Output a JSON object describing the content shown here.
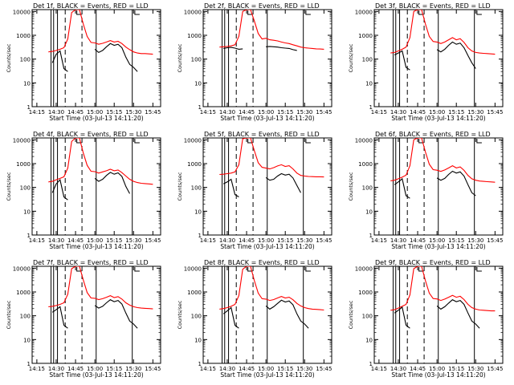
{
  "figure": {
    "x_tick_labels": [
      "14:15",
      "14:30",
      "14:45",
      "15:00",
      "15:15",
      "15:30",
      "15:45"
    ],
    "y_tick_labels": [
      "1",
      "10",
      "100",
      "1000",
      "10000"
    ],
    "ylabel": "Counts/sec",
    "xlabel": "Start Time (03-Jul-13 14:11:20)",
    "colors": {
      "events": "#000000",
      "lld": "#ff0000",
      "axes": "#000000"
    }
  },
  "chart_data": [
    {
      "type": "line",
      "title": "Det 1f, BLACK = Events, RED = LLD",
      "y_scale": "log",
      "xlim": [
        "14:11:20",
        "15:51:00"
      ],
      "ylim": [
        1,
        12000
      ],
      "x": [
        "14:24",
        "14:27",
        "14:30",
        "14:33",
        "14:36",
        "14:39",
        "14:42",
        "14:45",
        "14:48",
        "14:51",
        "14:54",
        "14:57",
        "15:00",
        "15:03",
        "15:06",
        "15:09",
        "15:12",
        "15:15",
        "15:18",
        "15:21",
        "15:24",
        "15:27",
        "15:30",
        "15:33",
        "15:36",
        "15:39",
        "15:42",
        "15:45"
      ],
      "series": [
        {
          "name": "BLACK = Events",
          "values": [
            null,
            null,
            null,
            null,
            null,
            null,
            null,
            null,
            null,
            null,
            null,
            null,
            null,
            null,
            null,
            null,
            null,
            null,
            null,
            null,
            null,
            null,
            null,
            null,
            null,
            null,
            null,
            null
          ]
        },
        {
          "name": "RED = LLD",
          "values": [
            null,
            null,
            null,
            null,
            null,
            null,
            null,
            null,
            null,
            null,
            null,
            null,
            null,
            null,
            null,
            null,
            null,
            null,
            null,
            null,
            null,
            null,
            null,
            null,
            null,
            null,
            null,
            null
          ]
        }
      ]
    },
    {
      "type": "line",
      "title": "Det 2f, BLACK = Events, RED = LLD",
      "y_scale": "log",
      "xlim": [
        "14:11:20",
        "15:51:00"
      ],
      "ylim": [
        1,
        12000
      ],
      "x": [
        "14:24",
        "14:27",
        "14:30",
        "14:33",
        "14:36",
        "14:39",
        "14:42",
        "14:45",
        "14:48",
        "14:51",
        "14:54",
        "14:57",
        "15:00",
        "15:03",
        "15:06",
        "15:09",
        "15:12",
        "15:15",
        "15:18",
        "15:21",
        "15:24",
        "15:27",
        "15:30",
        "15:33",
        "15:36",
        "15:39",
        "15:42",
        "15:45"
      ],
      "series": [
        {
          "name": "BLACK = Events",
          "values": [
            null,
            null,
            null,
            null,
            null,
            null,
            null,
            null,
            null,
            null,
            null,
            null,
            null,
            null,
            null,
            null,
            null,
            null,
            null,
            null,
            null,
            null,
            null,
            null,
            null,
            null,
            null,
            null
          ]
        },
        {
          "name": "RED = LLD",
          "values": [
            null,
            null,
            null,
            null,
            null,
            null,
            null,
            null,
            null,
            null,
            null,
            null,
            null,
            null,
            null,
            null,
            null,
            null,
            null,
            null,
            null,
            null,
            null,
            null,
            null,
            null,
            null,
            null
          ]
        }
      ]
    },
    {
      "type": "line",
      "title": "Det 3f, BLACK = Events, RED = LLD",
      "y_scale": "log",
      "xlim": [
        "14:11:20",
        "15:51:00"
      ],
      "ylim": [
        1,
        12000
      ],
      "x": [
        "14:24",
        "14:27",
        "14:30",
        "14:33",
        "14:36",
        "14:39",
        "14:42",
        "14:45",
        "14:48",
        "14:51",
        "14:54",
        "14:57",
        "15:00",
        "15:03",
        "15:06",
        "15:09",
        "15:12",
        "15:15",
        "15:18",
        "15:21",
        "15:24",
        "15:27",
        "15:30",
        "15:33",
        "15:36",
        "15:39",
        "15:42",
        "15:45"
      ],
      "series": [
        {
          "name": "BLACK = Events",
          "values": [
            null,
            null,
            null,
            null,
            null,
            null,
            null,
            null,
            null,
            null,
            null,
            null,
            null,
            null,
            null,
            null,
            null,
            null,
            null,
            null,
            null,
            null,
            null,
            null,
            null,
            null,
            null,
            null
          ]
        },
        {
          "name": "RED = LLD",
          "values": [
            null,
            null,
            null,
            null,
            null,
            null,
            null,
            null,
            null,
            null,
            null,
            null,
            null,
            null,
            null,
            null,
            null,
            null,
            null,
            null,
            null,
            null,
            null,
            null,
            null,
            null,
            null,
            null
          ]
        }
      ]
    },
    {
      "type": "line",
      "title": "Det 4f, BLACK = Events, RED = LLD",
      "y_scale": "log",
      "xlim": [
        "14:11:20",
        "15:51:00"
      ],
      "ylim": [
        1,
        12000
      ],
      "x": [
        "14:24",
        "14:27",
        "14:30",
        "14:33",
        "14:36",
        "14:39",
        "14:42",
        "14:45",
        "14:48",
        "14:51",
        "14:54",
        "14:57",
        "15:00",
        "15:03",
        "15:06",
        "15:09",
        "15:12",
        "15:15",
        "15:18",
        "15:21",
        "15:24",
        "15:27",
        "15:30",
        "15:33",
        "15:36",
        "15:39",
        "15:42",
        "15:45"
      ],
      "series": [
        {
          "name": "BLACK = Events",
          "values": [
            null,
            null,
            null,
            null,
            null,
            null,
            null,
            null,
            null,
            null,
            null,
            null,
            null,
            null,
            null,
            null,
            null,
            null,
            null,
            null,
            null,
            null,
            null,
            null,
            null,
            null,
            null,
            null
          ]
        },
        {
          "name": "RED = LLD",
          "values": [
            null,
            null,
            null,
            null,
            null,
            null,
            null,
            null,
            null,
            null,
            null,
            null,
            null,
            null,
            null,
            null,
            null,
            null,
            null,
            null,
            null,
            null,
            null,
            null,
            null,
            null,
            null,
            null
          ]
        }
      ]
    },
    {
      "type": "line",
      "title": "Det 5f, BLACK = Events, RED = LLD",
      "y_scale": "log",
      "xlim": [
        "14:11:20",
        "15:51:00"
      ],
      "ylim": [
        1,
        12000
      ],
      "x": [
        "14:24",
        "14:27",
        "14:30",
        "14:33",
        "14:36",
        "14:39",
        "14:42",
        "14:45",
        "14:48",
        "14:51",
        "14:54",
        "14:57",
        "15:00",
        "15:03",
        "15:06",
        "15:09",
        "15:12",
        "15:15",
        "15:18",
        "15:21",
        "15:24",
        "15:27",
        "15:30",
        "15:33",
        "15:36",
        "15:39",
        "15:42",
        "15:45"
      ],
      "series": [
        {
          "name": "BLACK = Events",
          "values": [
            null,
            null,
            null,
            null,
            null,
            null,
            null,
            null,
            null,
            null,
            null,
            null,
            null,
            null,
            null,
            null,
            null,
            null,
            null,
            null,
            null,
            null,
            null,
            null,
            null,
            null,
            null,
            null
          ]
        },
        {
          "name": "RED = LLD",
          "values": [
            null,
            null,
            null,
            null,
            null,
            null,
            null,
            null,
            null,
            null,
            null,
            null,
            null,
            null,
            null,
            null,
            null,
            null,
            null,
            null,
            null,
            null,
            null,
            null,
            null,
            null,
            null,
            null
          ]
        }
      ]
    },
    {
      "type": "line",
      "title": "Det 6f, BLACK = Events, RED = LLD",
      "y_scale": "log",
      "xlim": [
        "14:11:20",
        "15:51:00"
      ],
      "ylim": [
        1,
        12000
      ],
      "x": [
        "14:24",
        "14:27",
        "14:30",
        "14:33",
        "14:36",
        "14:39",
        "14:42",
        "14:45",
        "14:48",
        "14:51",
        "14:54",
        "14:57",
        "15:00",
        "15:03",
        "15:06",
        "15:09",
        "15:12",
        "15:15",
        "15:18",
        "15:21",
        "15:24",
        "15:27",
        "15:30",
        "15:33",
        "15:36",
        "15:39",
        "15:42",
        "15:45"
      ],
      "series": [
        {
          "name": "BLACK = Events",
          "values": [
            null,
            null,
            null,
            null,
            null,
            null,
            null,
            null,
            null,
            null,
            null,
            null,
            null,
            null,
            null,
            null,
            null,
            null,
            null,
            null,
            null,
            null,
            null,
            null,
            null,
            null,
            null,
            null
          ]
        },
        {
          "name": "RED = LLD",
          "values": [
            null,
            null,
            null,
            null,
            null,
            null,
            null,
            null,
            null,
            null,
            null,
            null,
            null,
            null,
            null,
            null,
            null,
            null,
            null,
            null,
            null,
            null,
            null,
            null,
            null,
            null,
            null,
            null
          ]
        }
      ]
    },
    {
      "type": "line",
      "title": "Det 7f, BLACK = Events, RED = LLD",
      "y_scale": "log",
      "xlim": [
        "14:11:20",
        "15:51:00"
      ],
      "ylim": [
        1,
        12000
      ],
      "x": [
        "14:24",
        "14:27",
        "14:30",
        "14:33",
        "14:36",
        "14:39",
        "14:42",
        "14:45",
        "14:48",
        "14:51",
        "14:54",
        "14:57",
        "15:00",
        "15:03",
        "15:06",
        "15:09",
        "15:12",
        "15:15",
        "15:18",
        "15:21",
        "15:24",
        "15:27",
        "15:30",
        "15:33",
        "15:36",
        "15:39",
        "15:42",
        "15:45"
      ],
      "series": [
        {
          "name": "BLACK = Events",
          "values": [
            null,
            null,
            null,
            null,
            null,
            null,
            null,
            null,
            null,
            null,
            null,
            null,
            null,
            null,
            null,
            null,
            null,
            null,
            null,
            null,
            null,
            null,
            null,
            null,
            null,
            null,
            null,
            null
          ]
        },
        {
          "name": "RED = LLD",
          "values": [
            null,
            null,
            null,
            null,
            null,
            null,
            null,
            null,
            null,
            null,
            null,
            null,
            null,
            null,
            null,
            null,
            null,
            null,
            null,
            null,
            null,
            null,
            null,
            null,
            null,
            null,
            null,
            null
          ]
        }
      ]
    },
    {
      "type": "line",
      "title": "Det 8f, BLACK = Events, RED = LLD",
      "y_scale": "log",
      "xlim": [
        "14:11:20",
        "15:51:00"
      ],
      "ylim": [
        1,
        12000
      ],
      "x": [
        "14:24",
        "14:27",
        "14:30",
        "14:33",
        "14:36",
        "14:39",
        "14:42",
        "14:45",
        "14:48",
        "14:51",
        "14:54",
        "14:57",
        "15:00",
        "15:03",
        "15:06",
        "15:09",
        "15:12",
        "15:15",
        "15:18",
        "15:21",
        "15:24",
        "15:27",
        "15:30",
        "15:33",
        "15:36",
        "15:39",
        "15:42",
        "15:45"
      ],
      "series": [
        {
          "name": "BLACK = Events",
          "values": [
            null,
            null,
            null,
            null,
            null,
            null,
            null,
            null,
            null,
            null,
            null,
            null,
            null,
            null,
            null,
            null,
            null,
            null,
            null,
            null,
            null,
            null,
            null,
            null,
            null,
            null,
            null,
            null
          ]
        },
        {
          "name": "RED = LLD",
          "values": [
            null,
            null,
            null,
            null,
            null,
            null,
            null,
            null,
            null,
            null,
            null,
            null,
            null,
            null,
            null,
            null,
            null,
            null,
            null,
            null,
            null,
            null,
            null,
            null,
            null,
            null,
            null,
            null
          ]
        }
      ]
    },
    {
      "type": "line",
      "title": "Det 9f, BLACK = Events, RED = LLD",
      "y_scale": "log",
      "xlim": [
        "14:11:20",
        "15:51:00"
      ],
      "ylim": [
        1,
        12000
      ],
      "x": [
        "14:24",
        "14:27",
        "14:30",
        "14:33",
        "14:36",
        "14:39",
        "14:42",
        "14:45",
        "14:48",
        "14:51",
        "14:54",
        "14:57",
        "15:00",
        "15:03",
        "15:06",
        "15:09",
        "15:12",
        "15:15",
        "15:18",
        "15:21",
        "15:24",
        "15:27",
        "15:30",
        "15:33",
        "15:36",
        "15:39",
        "15:42",
        "15:45"
      ],
      "series": [
        {
          "name": "BLACK = Events",
          "values": [
            null,
            null,
            null,
            null,
            null,
            null,
            null,
            null,
            null,
            null,
            null,
            null,
            null,
            null,
            null,
            null,
            null,
            null,
            null,
            null,
            null,
            null,
            null,
            null,
            null,
            null,
            null,
            null
          ]
        },
        {
          "name": "RED = LLD",
          "values": [
            null,
            null,
            null,
            null,
            null,
            null,
            null,
            null,
            null,
            null,
            null,
            null,
            null,
            null,
            null,
            null,
            null,
            null,
            null,
            null,
            null,
            null,
            null,
            null,
            null,
            null,
            null,
            null
          ]
        }
      ]
    }
  ]
}
